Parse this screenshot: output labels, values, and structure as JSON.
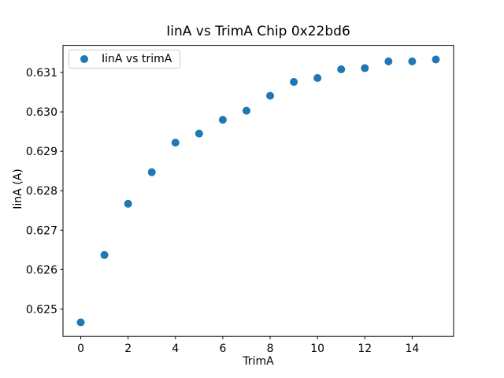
{
  "figure": {
    "background": "#ffffff",
    "text_color": "#000000",
    "spine_color": "#000000",
    "legend_border_color": "#cccccc"
  },
  "chart_data": {
    "type": "scatter",
    "title": "IinA vs TrimA Chip 0x22bd6",
    "xlabel": "TrimA",
    "ylabel": "IinA (A)",
    "grid": false,
    "legend_position": "upper left",
    "xlim": [
      -0.75,
      15.75
    ],
    "ylim": [
      0.624304,
      0.631688
    ],
    "xticks": {
      "values": [
        0,
        2,
        4,
        6,
        8,
        10,
        12,
        14
      ],
      "labels": [
        "0",
        "2",
        "4",
        "6",
        "8",
        "10",
        "12",
        "14"
      ]
    },
    "yticks": {
      "values": [
        0.625,
        0.626,
        0.627,
        0.628,
        0.629,
        0.63,
        0.631
      ],
      "labels": [
        "0.625",
        "0.626",
        "0.627",
        "0.628",
        "0.629",
        "0.630",
        "0.631"
      ]
    },
    "series": [
      {
        "name": "IinA vs trimA",
        "color": "#1f77b4",
        "marker": "circle",
        "x": [
          0,
          1,
          2,
          3,
          4,
          5,
          6,
          7,
          8,
          9,
          10,
          11,
          12,
          13,
          14,
          15
        ],
        "y": [
          0.62466,
          0.62637,
          0.62767,
          0.62847,
          0.62922,
          0.62945,
          0.6298,
          0.63003,
          0.63041,
          0.63076,
          0.63086,
          0.63108,
          0.63111,
          0.63128,
          0.63128,
          0.63133
        ]
      }
    ]
  }
}
